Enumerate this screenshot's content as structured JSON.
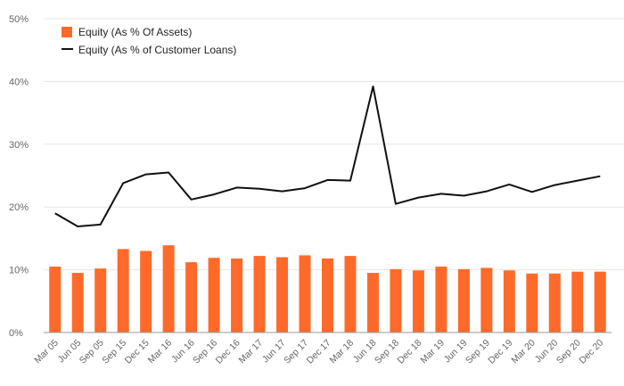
{
  "chart_data": {
    "type": "bar",
    "title": "",
    "xlabel": "",
    "ylabel": "",
    "ylim": [
      0,
      50
    ],
    "y_ticks": [
      "0%",
      "10%",
      "20%",
      "30%",
      "40%",
      "50%"
    ],
    "y_tick_values": [
      0,
      10,
      20,
      30,
      40,
      50
    ],
    "grid": true,
    "legend_position": "top-left",
    "categories": [
      "Mar 05",
      "Jun 05",
      "Sep 05",
      "Sep 15",
      "Dec 15",
      "Mar 16",
      "Jun 16",
      "Sep 16",
      "Dec 16",
      "Mar 17",
      "Jun 17",
      "Sep 17",
      "Dec 17",
      "Mar 18",
      "Jun 18",
      "Sep 18",
      "Dec 18",
      "Mar 19",
      "Jun 19",
      "Sep 19",
      "Dec 19",
      "Mar 20",
      "Jun 20",
      "Sep 20",
      "Dec 20"
    ],
    "series": [
      {
        "name": "Equity (As % Of Assets)",
        "type": "bar",
        "color": "#ff6a2a",
        "values": [
          10.5,
          9.5,
          10.2,
          13.3,
          13.0,
          13.9,
          11.2,
          11.9,
          11.8,
          12.2,
          12.0,
          12.3,
          11.8,
          12.2,
          9.5,
          10.1,
          9.9,
          10.5,
          10.1,
          10.3,
          9.9,
          9.4,
          9.4,
          9.7,
          9.7
        ]
      },
      {
        "name": "Equity (As % of Customer Loans)",
        "type": "line",
        "color": "#111111",
        "values": [
          19.0,
          16.9,
          17.2,
          23.8,
          25.2,
          25.5,
          21.2,
          22.0,
          23.1,
          22.9,
          22.5,
          23.0,
          24.3,
          24.2,
          39.2,
          20.5,
          21.5,
          22.1,
          21.8,
          22.5,
          23.6,
          22.4,
          23.5,
          24.2,
          24.9
        ]
      }
    ]
  }
}
